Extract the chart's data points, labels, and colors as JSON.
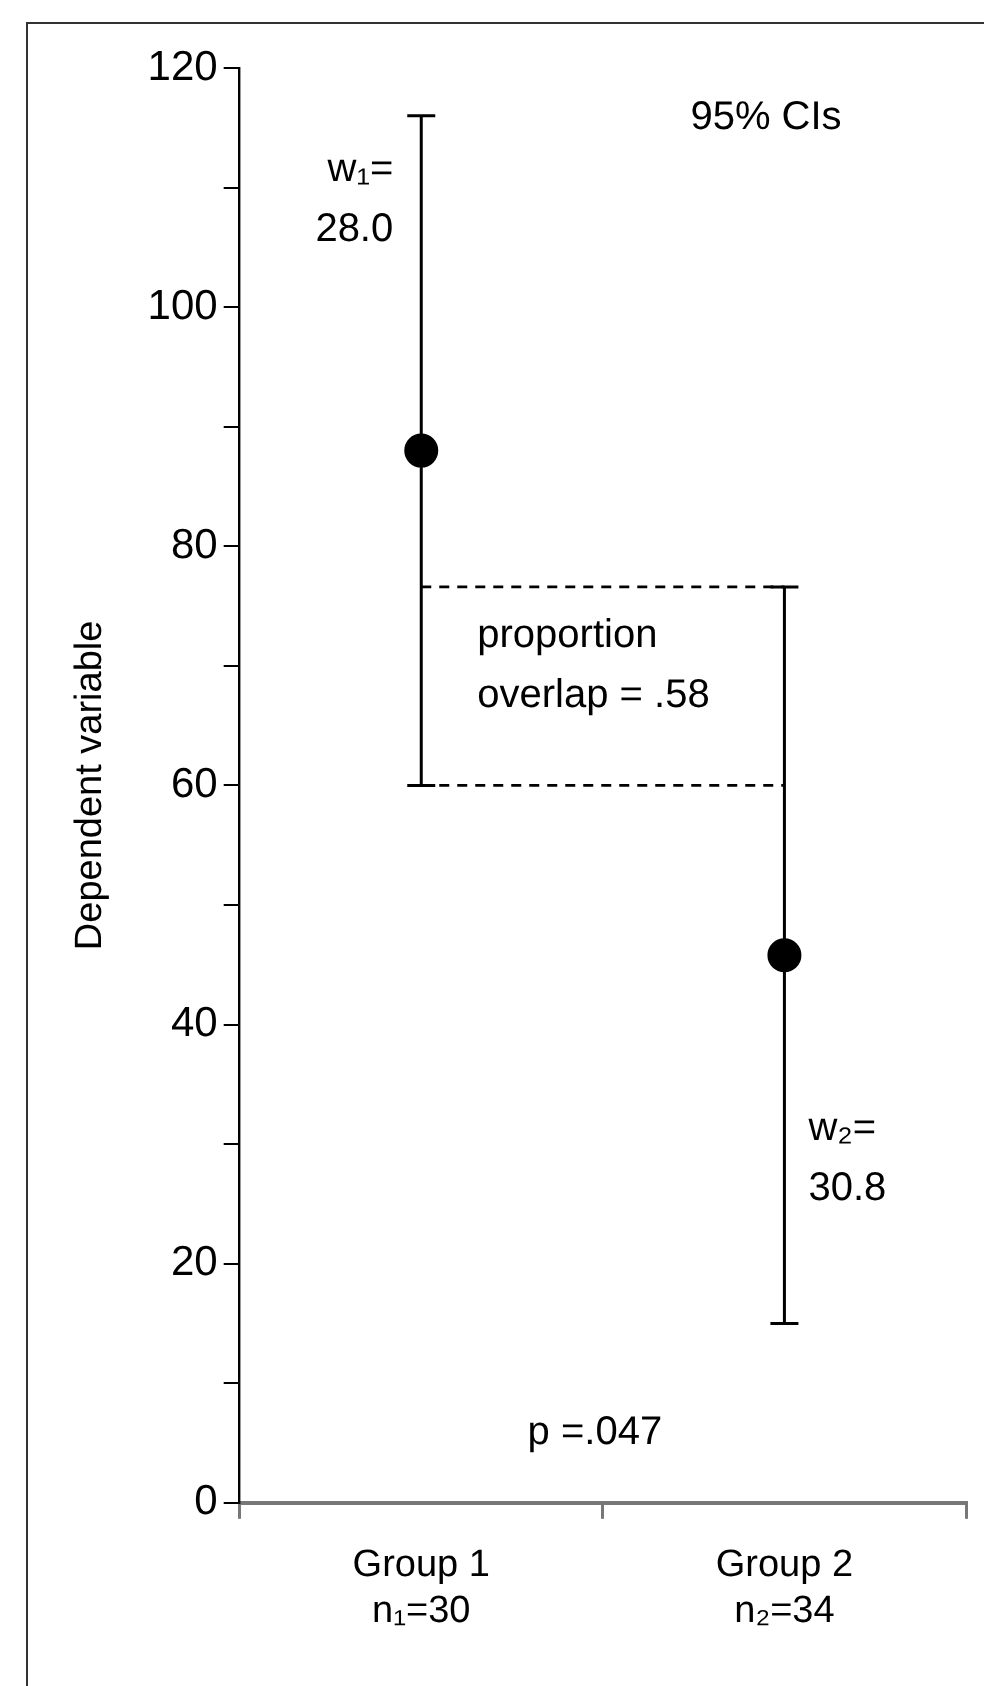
{
  "chart_data": {
    "type": "scatter",
    "ylabel": "Dependent variable",
    "categories": [
      "Group 1\nn₁=30",
      "Group 2\nn₂=34"
    ],
    "series": [
      {
        "color": "#000000",
        "values": [
          88,
          45.8
        ],
        "errors": [
          28,
          30.8
        ]
      }
    ],
    "ylim": [
      0,
      120
    ],
    "yticks": [
      0,
      {
        "value": 10,
        "label": null
      },
      20,
      {
        "value": 30,
        "label": null
      },
      40,
      {
        "value": 50,
        "label": null
      },
      60,
      {
        "value": 70,
        "label": null
      },
      80,
      {
        "value": 90,
        "label": null
      },
      100,
      {
        "value": 110,
        "label": null
      },
      120
    ],
    "ref_lines": [
      {
        "axis": "y",
        "value": 76.6,
        "line_style": "dashed",
        "color": "#000000"
      },
      {
        "axis": "y",
        "value": 60,
        "line_style": "dashed",
        "color": "#000000"
      }
    ],
    "marker": "circle",
    "grid": false,
    "legend": false,
    "annotations": [
      "95% CIs",
      {
        "text": "w₁=\n28.0",
        "x": "Group 1\nn₁=30",
        "y": 116
      },
      "proportion\noverlap = .58",
      {
        "text": "w₂=\n30.8",
        "x": "Group 2\nn₂=34",
        "y": 15
      },
      "p =.047"
    ]
  }
}
